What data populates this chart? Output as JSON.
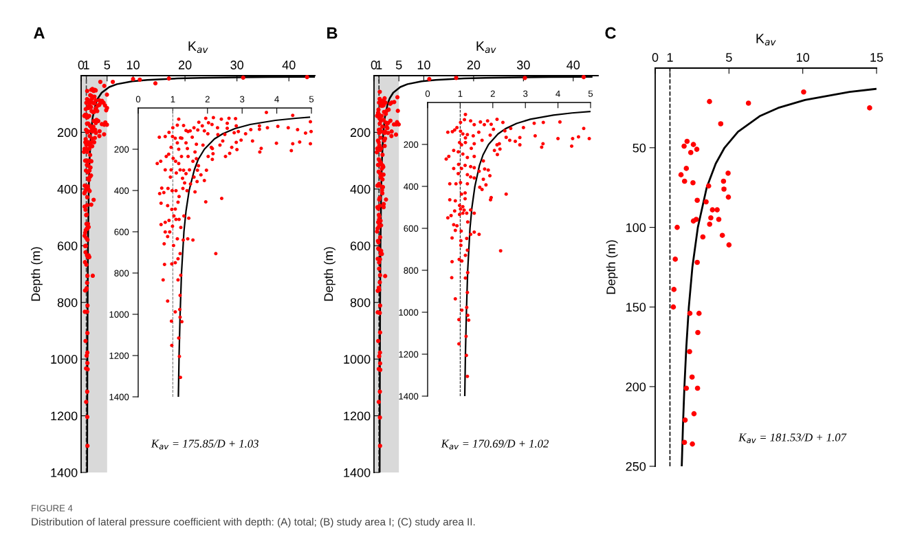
{
  "chart_data": [
    {
      "type": "scatter",
      "title": "A",
      "xlabel": "K$_{av}$",
      "ylabel": "Depth (m)",
      "xlim": [
        0,
        45
      ],
      "xticks": [
        0,
        1,
        5,
        10,
        20,
        30,
        40
      ],
      "ylim": [
        1400,
        0
      ],
      "yticks": [
        200,
        400,
        600,
        800,
        1000,
        1200,
        1400
      ],
      "bands": [
        {
          "axis": "x",
          "from": 0,
          "to": 5,
          "color": "#d9d9d9"
        }
      ],
      "ref_lines": [
        {
          "axis": "x",
          "value": 1,
          "line_style": "dashed",
          "color": "#444444"
        }
      ],
      "annotations": [
        "K$_{av}$ = 175.85/D + 1.03",
        "FIGURE 4",
        "Distribution of lateral pressure coefficient with depth: (A) total; (B) study area I; (C) study area II."
      ],
      "series": [
        {
          "marker": "circle",
          "color": "#ff0000",
          "x": [
            1.17,
            1.95,
            2.17,
            2.4,
            2.62,
            2.81,
            3.7,
            4.46,
            4.97,
            1.31,
            1.0,
            1.13,
            1.44,
            1.61,
            1.75,
            1.85,
            2.03,
            2.13,
            2.29,
            2.57,
            2.83,
            2.57,
            0.61,
            0.78,
            0.89,
            0.99,
            1.07,
            1.38,
            1.72,
            1.91,
            2.01,
            2.3,
            2.5,
            2.77,
            2.89,
            3.1,
            3.25,
            3.5,
            3.73,
            4.03,
            4.33,
            4.6,
            4.83,
            4.99,
            3.5,
            1.13,
            1.26,
            1.38,
            1.56,
            1.68,
            1.87,
            2.11,
            2.36,
            2.44,
            2.7,
            2.83,
            2.97,
            3.3,
            3.99,
            4.46,
            4.66,
            4.97,
            3.55,
            3.51,
            4.42,
            0.95,
            1.17,
            1.42,
            1.64,
            2.14,
            2.16,
            2.02,
            2.14,
            2.52,
            2.64,
            2.85,
            0.55,
            0.65,
            0.81,
            0.88,
            1.01,
            1.08,
            1.17,
            1.25,
            1.44,
            1.58,
            1.68,
            1.74,
            0.78,
            0.95,
            1.1,
            1.21,
            1.31,
            1.38,
            1.48,
            1.61,
            1.71,
            1.81,
            1.97,
            1.91,
            0.93,
            1.28,
            1.34,
            1.51,
            1.7,
            0.62,
            0.68,
            0.74,
            0.86,
            0.98,
            1.18,
            1.29,
            1.41,
            1.64,
            1.95,
            2.41,
            0.66,
            0.85,
            0.97,
            1.07,
            1.15,
            1.03,
            0.66,
            0.78,
            0.89,
            0.99,
            1.09,
            1.18,
            1.32,
            1.46,
            0.78,
            0.91,
            0.85,
            1.13,
            1.3,
            1.43,
            1.58,
            1.23,
            0.75,
            1.02,
            2.24,
            1.21,
            1.15,
            0.76,
            0.97,
            1.07,
            0.72,
            1.15,
            1.23,
            1.21,
            0.85,
            1.07,
            1.2,
            1.21,
            1.26,
            0.96,
            1.17,
            0.97,
            1.19,
            1.22,
            6.1,
            10.0,
            11.3,
            14.3,
            16.9,
            31.2,
            43.5
          ],
          "values": [
            54,
            50,
            47,
            54,
            50,
            52,
            22,
            36,
            67,
            85,
            96,
            83,
            114,
            96,
            69,
            87,
            72,
            80,
            96,
            74,
            87,
            98,
            142,
            138,
            118,
            138,
            147,
            109,
            107,
            111,
            125,
            129,
            128,
            120,
            114,
            125,
            105,
            87,
            96,
            89,
            96,
            105,
            122,
            114,
            103,
            169,
            147,
            169,
            142,
            176,
            180,
            191,
            180,
            160,
            191,
            167,
            156,
            160,
            171,
            173,
            165,
            173,
            196,
            213,
            207,
            191,
            200,
            197,
            213,
            197,
            222,
            235,
            249,
            235,
            220,
            202,
            269,
            258,
            235,
            224,
            244,
            258,
            269,
            235,
            235,
            258,
            246,
            280,
            300,
            300,
            315,
            300,
            302,
            318,
            300,
            335,
            302,
            324,
            302,
            352,
            335,
            341,
            363,
            368,
            357,
            415,
            388,
            410,
            390,
            401,
            429,
            390,
            401,
            407,
            455,
            438,
            462,
            473,
            492,
            490,
            457,
            523,
            565,
            554,
            545,
            573,
            540,
            540,
            523,
            534,
            601,
            601,
            623,
            634,
            640,
            634,
            640,
            579,
            658,
            667,
            706,
            706,
            731,
            758,
            756,
            750,
            833,
            833,
            811,
            908,
            936,
            988,
            977,
            1014,
            1036,
            1033,
            1115,
            1151,
            1204,
            1306,
            22,
            12,
            14,
            27,
            10,
            7,
            5
          ]
        },
        {
          "type": "line",
          "marker": "none",
          "line_style": "solid",
          "color": "#000000",
          "x": [
            44.99,
            36.2,
            30.34,
            23.01,
            18.62,
            12.75,
            9.82,
            6.89,
            5.43,
            3.96,
            3.23,
            2.79,
            2.2,
            1.91,
            1.62,
            1.47,
            1.32,
            1.25,
            1.21,
            1.16
          ],
          "values": [
            4,
            5,
            6,
            8,
            10,
            15,
            20,
            30,
            40,
            60,
            80,
            100,
            150,
            200,
            300,
            400,
            600,
            800,
            1000,
            1400
          ]
        }
      ]
    },
    {
      "type": "scatter",
      "xlim": [
        0,
        5
      ],
      "xticks": [
        0,
        1,
        2,
        3,
        4,
        5
      ],
      "ylim": [
        1400,
        0
      ],
      "yticks": [
        200,
        400,
        600,
        800,
        1000,
        1200,
        1400
      ],
      "ref_lines": [
        {
          "axis": "x",
          "value": 1,
          "line_style": "dashed",
          "color": "#777777"
        }
      ],
      "series": [
        {
          "marker": "circle",
          "color": "#ff0000",
          "x": [
            1.17,
            1.95,
            2.17,
            2.4,
            2.62,
            2.81,
            3.7,
            4.46,
            4.97,
            1.31,
            1.0,
            1.13,
            1.44,
            1.61,
            1.75,
            1.85,
            2.03,
            2.13,
            2.29,
            2.57,
            2.83,
            2.57,
            0.61,
            0.78,
            0.89,
            0.99,
            1.07,
            1.22,
            1.38,
            1.5,
            1.72,
            1.91,
            2.01,
            2.3,
            2.5,
            2.77,
            2.89,
            3.1,
            3.25,
            3.5,
            3.73,
            4.03,
            4.33,
            4.6,
            4.83,
            4.99,
            3.5,
            1.13,
            1.26,
            1.38,
            1.56,
            1.68,
            1.87,
            2.11,
            2.36,
            2.44,
            2.7,
            2.83,
            2.97,
            3.3,
            3.99,
            4.46,
            4.66,
            4.97,
            3.55,
            3.51,
            4.42,
            0.95,
            1.17,
            1.42,
            1.64,
            2.14,
            2.16,
            2.02,
            2.14,
            2.52,
            2.64,
            2.85,
            0.55,
            0.65,
            0.81,
            0.88,
            1.01,
            1.08,
            1.17,
            1.25,
            1.44,
            1.58,
            1.68,
            1.74,
            0.78,
            0.95,
            1.1,
            1.21,
            1.31,
            1.38,
            1.48,
            1.61,
            1.71,
            1.81,
            1.97,
            1.91,
            0.93,
            1.28,
            1.34,
            1.51,
            1.7,
            0.62,
            0.68,
            0.74,
            0.86,
            0.98,
            1.09,
            1.18,
            1.29,
            1.41,
            1.64,
            1.95,
            2.41,
            0.66,
            0.85,
            0.97,
            1.07,
            1.15,
            1.03,
            0.66,
            0.78,
            0.89,
            0.99,
            1.09,
            1.18,
            1.32,
            1.46,
            0.78,
            0.91,
            0.85,
            1.13,
            1.3,
            1.43,
            1.58,
            1.23,
            0.75,
            1.02,
            2.24,
            1.21,
            1.15,
            0.76,
            0.97,
            1.07,
            0.72,
            1.15,
            1.23,
            1.21,
            0.85,
            1.07,
            1.2,
            1.21,
            1.26,
            0.96,
            1.17,
            0.97,
            1.19,
            1.22
          ],
          "values": [
            54,
            50,
            47,
            54,
            50,
            52,
            22,
            36,
            67,
            85,
            96,
            83,
            114,
            96,
            69,
            87,
            72,
            80,
            96,
            74,
            87,
            98,
            142,
            138,
            118,
            138,
            147,
            145,
            109,
            111,
            107,
            111,
            125,
            129,
            128,
            120,
            114,
            125,
            105,
            87,
            96,
            89,
            96,
            105,
            122,
            114,
            103,
            169,
            147,
            169,
            142,
            176,
            180,
            191,
            180,
            160,
            191,
            167,
            156,
            160,
            171,
            173,
            165,
            173,
            196,
            213,
            207,
            191,
            200,
            197,
            213,
            197,
            222,
            235,
            249,
            235,
            220,
            202,
            269,
            258,
            235,
            224,
            244,
            258,
            269,
            235,
            235,
            258,
            246,
            280,
            300,
            300,
            315,
            300,
            302,
            318,
            300,
            335,
            302,
            324,
            302,
            352,
            335,
            341,
            363,
            368,
            357,
            415,
            388,
            410,
            390,
            401,
            401,
            429,
            390,
            401,
            407,
            455,
            438,
            462,
            473,
            492,
            490,
            457,
            523,
            565,
            554,
            545,
            573,
            540,
            540,
            523,
            534,
            601,
            601,
            623,
            634,
            640,
            634,
            640,
            579,
            658,
            667,
            706,
            706,
            731,
            758,
            756,
            750,
            833,
            833,
            811,
            908,
            936,
            988,
            977,
            1014,
            1036,
            1033,
            1115,
            1151,
            1204,
            1306
          ]
        },
        {
          "type": "line",
          "marker": "none",
          "line_style": "solid",
          "color": "#000000",
          "x": [
            4.94,
            4.55,
            3.96,
            3.23,
            2.79,
            2.44,
            2.2,
            1.91,
            1.73,
            1.62,
            1.47,
            1.38,
            1.32,
            1.25,
            1.21,
            1.18,
            1.16
          ],
          "values": [
            45,
            50,
            60,
            80,
            100,
            125,
            150,
            200,
            250,
            300,
            400,
            500,
            600,
            800,
            1000,
            1200,
            1400
          ]
        }
      ]
    },
    {
      "type": "scatter",
      "title": "B",
      "xlabel": "K$_{av}$",
      "ylabel": "Depth (m)",
      "xlim": [
        0,
        45
      ],
      "xticks": [
        0,
        1,
        5,
        10,
        20,
        30,
        40
      ],
      "ylim": [
        1400,
        0
      ],
      "yticks": [
        200,
        400,
        600,
        800,
        1000,
        1200,
        1400
      ],
      "bands": [
        {
          "axis": "x",
          "from": 0,
          "to": 5,
          "color": "#d9d9d9"
        }
      ],
      "ref_lines": [
        {
          "axis": "x",
          "value": 1,
          "line_style": "dashed",
          "color": "#222222"
        }
      ],
      "annotations": [
        "K$_{av}$ = 170.69/D + 1.02"
      ],
      "series": [
        {
          "marker": "circle",
          "color": "#ff0000",
          "x": [
            1.16,
            1.13,
            1.01,
            1.32,
            1.43,
            1.62,
            1.74,
            1.84,
            1.95,
            2.13,
            2.31,
            2.02,
            2.37,
            2.55,
            2.94,
            3.27,
            3.3,
            3.55,
            3.54,
            3.5,
            4.06,
            4.0,
            4.42,
            4.45,
            4.63,
            4.79,
            4.96,
            2.41,
            2.52,
            2.69,
            2.83,
            2.83,
            2.13,
            2.2,
            2.05,
            2.14,
            2.22,
            0.62,
            0.76,
            0.83,
            0.9,
            1.01,
            1.08,
            1.16,
            1.22,
            1.4,
            1.57,
            1.67,
            1.92,
            0.98,
            1.04,
            1.16,
            1.34,
            1.43,
            0.57,
            0.65,
            0.8,
            0.94,
            1.08,
            1.22,
            1.43,
            1.71,
            0.8,
            0.95,
            1.04,
            1.15,
            1.32,
            1.43,
            1.58,
            1.75,
            1.86,
            1.91,
            0.94,
            1.22,
            1.32,
            1.43,
            1.71,
            0.68,
            0.87,
            1.01,
            1.22,
            1.6,
            1.67,
            1.79,
            1.95,
            1.93,
            2.41,
            0.68,
            0.85,
            1.04,
            1.15,
            1.15,
            0.98,
            1.08,
            1.01,
            0.62,
            0.72,
            0.83,
            0.98,
            1.08,
            1.2,
            1.32,
            1.43,
            0.8,
            0.9,
            0.85,
            1.03,
            1.23,
            1.43,
            1.58,
            1.32,
            0.75,
            1.02,
            1.02,
            1.2,
            2.24,
            1.22,
            1.16,
            0.75,
            0.97,
            1.05,
            0.74,
            1.16,
            1.23,
            1.22,
            0.85,
            1.05,
            1.2,
            1.23,
            1.26,
            0.96,
            1.18,
            0.96,
            1.19,
            1.22,
            11.1,
            16.5,
            30.3,
            42.1,
            4.7
          ],
          "values": [
            57,
            82,
            95,
            88,
            106,
            93,
            106,
            88,
            104,
            80,
            95,
            128,
            135,
            124,
            120,
            99,
            159,
            95,
            197,
            213,
            93,
            172,
            208,
            172,
            164,
            124,
            172,
            166,
            180,
            185,
            202,
            167,
            202,
            197,
            229,
            248,
            222,
            142,
            139,
            131,
            120,
            137,
            150,
            169,
            153,
            159,
            142,
            180,
            156,
            191,
            202,
            191,
            219,
            197,
            270,
            257,
            229,
            235,
            246,
            262,
            257,
            279,
            315,
            295,
            315,
            300,
            306,
            311,
            328,
            317,
            322,
            349,
            339,
            344,
            355,
            360,
            366,
            388,
            388,
            382,
            388,
            404,
            415,
            393,
            453,
            464,
            437,
            464,
            469,
            437,
            431,
            459,
            491,
            497,
            508,
            550,
            539,
            517,
            534,
            528,
            528,
            512,
            528,
            583,
            588,
            610,
            613,
            570,
            618,
            629,
            629,
            646,
            659,
            681,
            648,
            707,
            704,
            729,
            759,
            748,
            756,
            835,
            837,
            811,
            906,
            936,
            990,
            977,
            1015,
            1038,
            1035,
            1115,
            1151,
            1206,
            1306,
            12,
            8,
            8,
            5,
            76
          ]
        },
        {
          "type": "line",
          "marker": "none",
          "line_style": "solid",
          "color": "#000000",
          "x": [
            43.69,
            35.16,
            29.47,
            22.36,
            18.09,
            12.4,
            9.55,
            6.71,
            5.29,
            3.86,
            3.15,
            2.73,
            2.16,
            1.87,
            1.59,
            1.45,
            1.3,
            1.23,
            1.19,
            1.14
          ],
          "values": [
            4,
            5,
            6,
            8,
            10,
            15,
            20,
            30,
            40,
            60,
            80,
            100,
            150,
            200,
            300,
            400,
            600,
            800,
            1000,
            1400
          ]
        }
      ]
    },
    {
      "type": "scatter",
      "xlim": [
        0,
        5
      ],
      "xticks": [
        0,
        1,
        2,
        3,
        4,
        5
      ],
      "ylim": [
        1400,
        0
      ],
      "yticks": [
        200,
        400,
        600,
        800,
        1000,
        1200,
        1400
      ],
      "ref_lines": [
        {
          "axis": "x",
          "value": 1,
          "line_style": "dashed",
          "color": "#222222"
        }
      ],
      "series": [
        {
          "marker": "circle",
          "color": "#ff0000",
          "x": [
            1.16,
            1.13,
            1.01,
            1.32,
            1.43,
            1.62,
            1.74,
            1.84,
            1.95,
            2.13,
            2.31,
            2.02,
            2.37,
            2.55,
            2.94,
            3.27,
            3.3,
            3.55,
            3.54,
            3.5,
            4.06,
            4.0,
            4.42,
            4.45,
            4.63,
            4.79,
            4.96,
            2.41,
            2.52,
            2.69,
            2.83,
            2.83,
            2.13,
            2.2,
            2.05,
            2.14,
            2.22,
            0.62,
            0.76,
            0.83,
            0.9,
            1.01,
            1.08,
            1.16,
            1.22,
            1.4,
            1.57,
            1.67,
            1.92,
            0.98,
            1.04,
            1.16,
            1.34,
            1.43,
            0.57,
            0.65,
            0.8,
            0.94,
            1.08,
            1.22,
            1.43,
            1.71,
            0.8,
            0.95,
            1.04,
            1.15,
            1.32,
            1.43,
            1.58,
            1.75,
            1.86,
            1.91,
            0.94,
            1.22,
            1.32,
            1.43,
            1.71,
            0.68,
            0.87,
            1.01,
            1.22,
            1.6,
            1.67,
            1.79,
            1.95,
            1.93,
            2.41,
            0.68,
            0.85,
            1.04,
            1.15,
            1.15,
            0.98,
            1.08,
            1.01,
            1.12,
            0.62,
            0.72,
            0.83,
            0.98,
            1.08,
            1.2,
            1.32,
            1.43,
            0.8,
            0.9,
            0.85,
            1.03,
            1.23,
            1.43,
            1.58,
            1.32,
            0.75,
            1.02,
            1.02,
            1.2,
            2.24,
            1.22,
            1.16,
            0.75,
            0.97,
            1.05,
            0.74,
            1.16,
            1.23,
            1.22,
            0.85,
            1.05,
            1.2,
            1.23,
            1.26,
            0.96,
            1.18,
            0.96,
            1.19,
            1.22
          ],
          "values": [
            57,
            82,
            95,
            88,
            106,
            93,
            106,
            88,
            104,
            80,
            95,
            128,
            135,
            124,
            120,
            99,
            159,
            95,
            197,
            213,
            93,
            172,
            208,
            172,
            164,
            124,
            172,
            166,
            180,
            185,
            202,
            167,
            202,
            197,
            229,
            248,
            222,
            142,
            139,
            131,
            120,
            137,
            150,
            169,
            153,
            159,
            142,
            180,
            156,
            191,
            202,
            191,
            219,
            197,
            270,
            257,
            229,
            235,
            246,
            262,
            257,
            279,
            315,
            295,
            315,
            300,
            306,
            311,
            328,
            317,
            322,
            349,
            339,
            344,
            355,
            360,
            366,
            388,
            388,
            382,
            388,
            404,
            415,
            393,
            453,
            464,
            437,
            464,
            469,
            437,
            431,
            459,
            491,
            497,
            508,
            513,
            550,
            539,
            517,
            534,
            528,
            528,
            512,
            528,
            583,
            588,
            610,
            613,
            570,
            618,
            629,
            629,
            646,
            659,
            681,
            648,
            707,
            704,
            729,
            759,
            748,
            756,
            835,
            837,
            811,
            906,
            936,
            990,
            977,
            1015,
            1038,
            1035,
            1115,
            1151,
            1206,
            1306
          ]
        },
        {
          "type": "line",
          "marker": "none",
          "line_style": "solid",
          "color": "#000000",
          "x": [
            4.99,
            4.43,
            3.86,
            3.15,
            2.73,
            2.39,
            2.16,
            1.87,
            1.7,
            1.59,
            1.45,
            1.36,
            1.3,
            1.23,
            1.19,
            1.16,
            1.14
          ],
          "values": [
            43,
            50,
            60,
            80,
            100,
            125,
            150,
            200,
            250,
            300,
            400,
            500,
            600,
            800,
            1000,
            1200,
            1400
          ]
        }
      ]
    },
    {
      "type": "scatter",
      "title": "C",
      "xlabel": "K$_{av}$",
      "ylabel": "Depth (m)",
      "xlim": [
        0,
        15
      ],
      "xticks": [
        0,
        1,
        5,
        10,
        15
      ],
      "ylim": [
        250,
        0
      ],
      "yticks": [
        50,
        100,
        150,
        200,
        250
      ],
      "ref_lines": [
        {
          "axis": "x",
          "value": 1,
          "line_style": "dashed",
          "color": "#000000"
        }
      ],
      "annotations": [
        "K$_{av}$ = 181.53/D + 1.07"
      ],
      "series": [
        {
          "marker": "circle",
          "color": "#ff0000",
          "x": [
            10.06,
            14.53,
            3.68,
            6.32,
            4.44,
            2.16,
            1.96,
            2.59,
            2.41,
            2.82,
            2.11,
            1.75,
            1.99,
            2.56,
            3.62,
            4.94,
            4.63,
            4.66,
            4.96,
            2.85,
            3.45,
            3.88,
            4.2,
            3.77,
            4.31,
            3.69,
            2.78,
            2.59,
            1.49,
            3.23,
            4.55,
            5.0,
            1.36,
            2.85,
            1.27,
            1.23,
            2.35,
            2.97,
            2.89,
            2.33,
            2.5,
            2.11,
            2.87,
            2.63,
            2.03,
            1.98,
            2.52
          ],
          "values": [
            15,
            25,
            21,
            22,
            35,
            46,
            49,
            48,
            53,
            51,
            63,
            67,
            71,
            72,
            74,
            66,
            71,
            76,
            81,
            83,
            84,
            89,
            89,
            94,
            95,
            98,
            95,
            96,
            100,
            106,
            105,
            111,
            120,
            122,
            139,
            150,
            154,
            154,
            166,
            178,
            194,
            201,
            201,
            217,
            221,
            235,
            236
          ]
        },
        {
          "type": "line",
          "marker": "none",
          "line_style": "solid",
          "color": "#000000",
          "x": [
            14.93,
            13.17,
            10.15,
            8.33,
            7.12,
            5.61,
            4.7,
            4.1,
            3.49,
            2.89,
            2.52,
            2.28,
            2.11,
            1.98,
            1.88,
            1.8
          ],
          "values": [
            13.1,
            15,
            20,
            25,
            30,
            40,
            50,
            60,
            75,
            100,
            125,
            150,
            175,
            200,
            225,
            250
          ]
        }
      ]
    }
  ]
}
